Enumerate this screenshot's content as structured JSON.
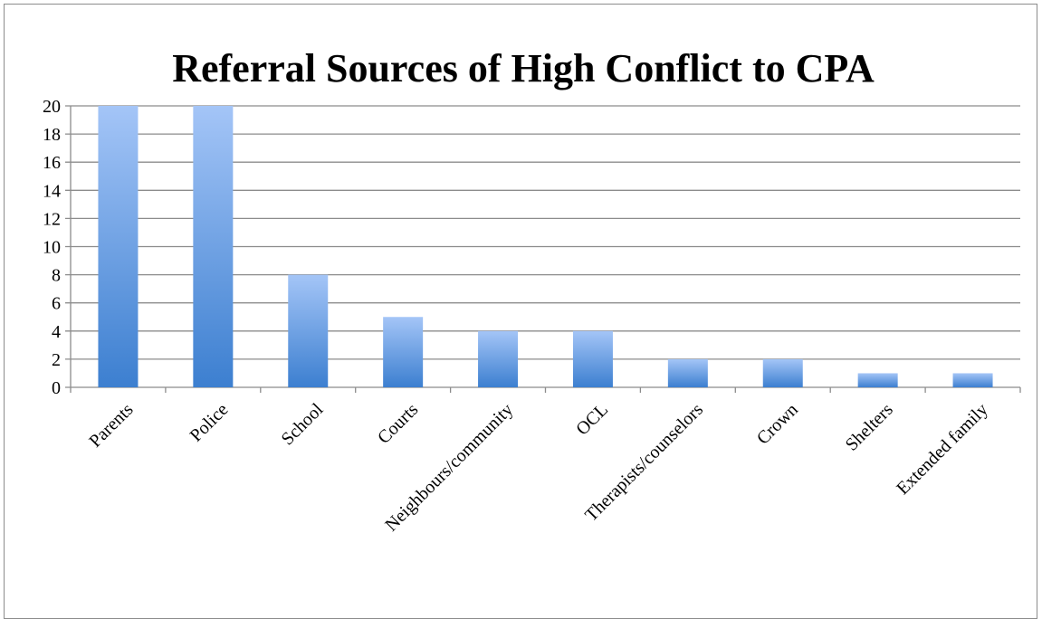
{
  "chart_data": {
    "type": "bar",
    "title": "Referral Sources of High Conflict to CPA",
    "categories": [
      "Parents",
      "Police",
      "School",
      "Courts",
      "Neighbours/community",
      "OCL",
      "Therapists/counselors",
      "Crown",
      "Shelters",
      "Extended family"
    ],
    "values": [
      20,
      20,
      8,
      5,
      4,
      4,
      2,
      2,
      1,
      1
    ],
    "ylim": [
      0,
      20
    ],
    "yticks": [
      0,
      2,
      4,
      6,
      8,
      10,
      12,
      14,
      16,
      18,
      20
    ],
    "grid": true,
    "legend": "none",
    "colors": {
      "bar_top": "#a4c5f7",
      "bar_bottom": "#3c7fd0",
      "gridline": "#8c8c8c",
      "axis": "#8c8c8c"
    }
  }
}
